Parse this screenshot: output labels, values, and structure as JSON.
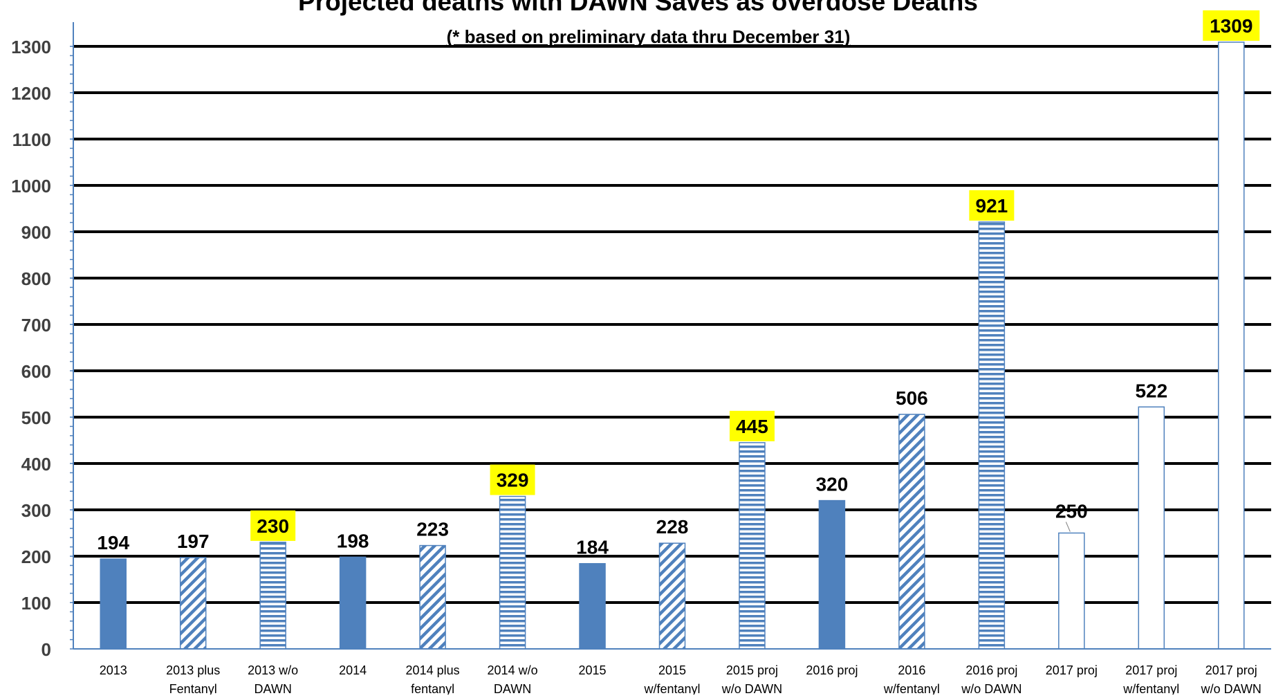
{
  "chart_data": {
    "type": "bar",
    "title": "Projected deaths with DAWN Saves as overdose Deaths",
    "subtitle": "(* based on preliminary data thru December 31)",
    "xlabel": "",
    "ylabel": "",
    "ylim": [
      0,
      1300
    ],
    "yticks": [
      "0",
      "100",
      "200",
      "300",
      "400",
      "500",
      "600",
      "700",
      "800",
      "900",
      "1000",
      "1100",
      "1200",
      "1300"
    ],
    "grid": true,
    "legend": "none",
    "categories": [
      "2013",
      "2013 plus Fentanyl",
      "2013 w/o DAWN",
      "2014",
      "2014 plus fentanyl",
      "2014 w/o DAWN",
      "2015",
      "2015 w/fentanyl",
      "2015 proj w/o DAWN",
      "2016 proj",
      "2016 w/fentanyl",
      "2016 proj w/o DAWN",
      "2017 proj",
      "2017 proj w/fentanyl",
      "2017 proj w/o DAWN"
    ],
    "category_lines": [
      [
        "2013"
      ],
      [
        "2013 plus",
        "Fentanyl"
      ],
      [
        "2013 w/o",
        "DAWN"
      ],
      [
        "2014"
      ],
      [
        "2014 plus",
        "fentanyl"
      ],
      [
        "2014 w/o",
        "DAWN"
      ],
      [
        "2015"
      ],
      [
        "2015",
        "w/fentanyl"
      ],
      [
        "2015 proj",
        "w/o DAWN"
      ],
      [
        "2016 proj"
      ],
      [
        "2016",
        "w/fentanyl"
      ],
      [
        "2016 proj",
        "w/o DAWN"
      ],
      [
        "2017 proj"
      ],
      [
        "2017 proj",
        "w/fentanyl"
      ],
      [
        "2017 proj",
        "w/o DAWN"
      ]
    ],
    "values": [
      194,
      197,
      230,
      198,
      223,
      329,
      184,
      228,
      445,
      320,
      506,
      921,
      250,
      522,
      1309
    ],
    "data_labels": [
      "194",
      "197",
      "230",
      "198",
      "223",
      "329",
      "184",
      "228",
      "445",
      "320",
      "506",
      "921",
      "250",
      "522",
      "1309"
    ],
    "bar_styles": [
      "solid",
      "diagonal",
      "horizontal",
      "solid",
      "diagonal",
      "horizontal",
      "solid",
      "diagonal",
      "horizontal",
      "solid",
      "diagonal",
      "horizontal",
      "outline",
      "outline",
      "outline"
    ],
    "highlighted_labels": [
      2,
      5,
      8,
      11,
      14
    ],
    "colors": {
      "bar_fill": "#4f81bd",
      "bar_outline": "#4f81bd",
      "gridline": "#000000",
      "axis": "#4f81bd",
      "highlight": "#ffff00",
      "text": "#000000",
      "tick_text": "#404040"
    }
  }
}
